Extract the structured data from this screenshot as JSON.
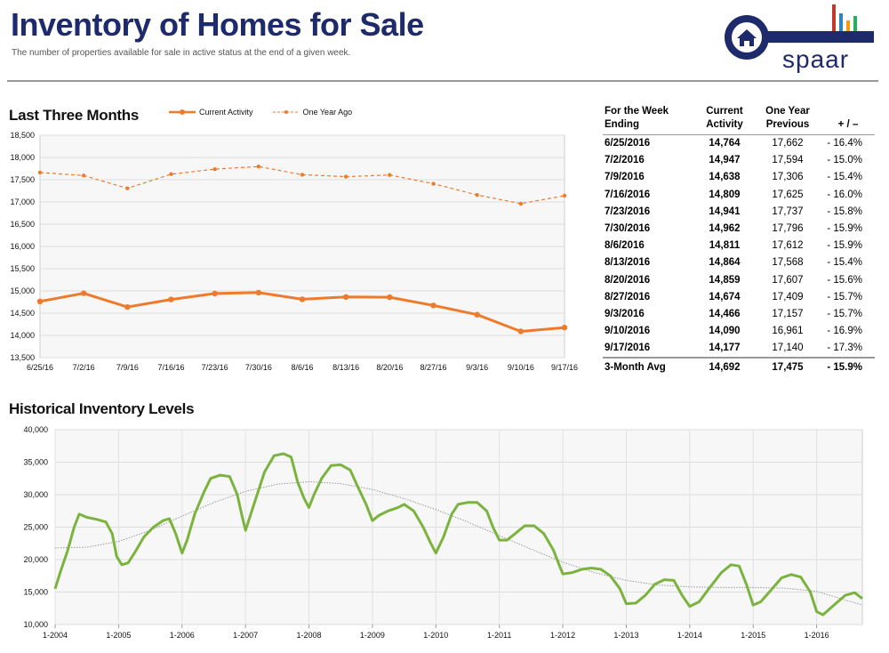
{
  "header": {
    "title": "Inventory of Homes for Sale",
    "subtitle": "The number of properties available for sale in active status at the end of a given week."
  },
  "logo": {
    "text": "spaar",
    "icon": "house-key-logo-icon",
    "bar_colors": [
      "#c0392b",
      "#2e86c1",
      "#f39c12",
      "#27ae60"
    ]
  },
  "colors": {
    "current": "#ee7b2c",
    "year_ago": "#ee7b2c",
    "historical": "#7bb33e",
    "trend": "#999999",
    "title": "#1d2a6b"
  },
  "chart_data": [
    {
      "type": "line",
      "title": "Last Three Months",
      "categories": [
        "6/25/16",
        "7/2/16",
        "7/9/16",
        "7/16/16",
        "7/23/16",
        "7/30/16",
        "8/6/16",
        "8/13/16",
        "8/20/16",
        "8/27/16",
        "9/3/16",
        "9/10/16",
        "9/17/16"
      ],
      "series": [
        {
          "name": "Current Activity",
          "style": "solid",
          "values": [
            14764,
            14947,
            14638,
            14809,
            14941,
            14962,
            14811,
            14864,
            14859,
            14674,
            14466,
            14090,
            14177
          ]
        },
        {
          "name": "One Year Ago",
          "style": "dashed",
          "values": [
            17662,
            17594,
            17306,
            17625,
            17737,
            17796,
            17612,
            17568,
            17607,
            17409,
            17157,
            16961,
            17140
          ]
        }
      ],
      "ylim": [
        13500,
        18500
      ],
      "yticks": [
        "13,500",
        "14,000",
        "14,500",
        "15,000",
        "15,500",
        "16,000",
        "16,500",
        "17,000",
        "17,500",
        "18,000",
        "18,500"
      ],
      "grid": true,
      "legend": "top"
    },
    {
      "type": "line",
      "title": "Historical Inventory Levels",
      "xlim": [
        2004.0,
        2016.72
      ],
      "ylim": [
        10000,
        40000
      ],
      "yticks": [
        "10,000",
        "15,000",
        "20,000",
        "25,000",
        "30,000",
        "35,000",
        "40,000"
      ],
      "xticks": [
        "1-2004",
        "1-2005",
        "1-2006",
        "1-2007",
        "1-2008",
        "1-2009",
        "1-2010",
        "1-2011",
        "1-2012",
        "1-2013",
        "1-2014",
        "1-2015",
        "1-2016"
      ],
      "grid": true,
      "series": [
        {
          "name": "",
          "style": "solid",
          "points": [
            [
              2004.0,
              15500
            ],
            [
              2004.08,
              18000
            ],
            [
              2004.2,
              21500
            ],
            [
              2004.3,
              25000
            ],
            [
              2004.38,
              27000
            ],
            [
              2004.5,
              26500
            ],
            [
              2004.65,
              26200
            ],
            [
              2004.8,
              25800
            ],
            [
              2004.9,
              24000
            ],
            [
              2004.97,
              20500
            ],
            [
              2005.05,
              19200
            ],
            [
              2005.15,
              19500
            ],
            [
              2005.25,
              21000
            ],
            [
              2005.4,
              23500
            ],
            [
              2005.55,
              25000
            ],
            [
              2005.7,
              26000
            ],
            [
              2005.8,
              26300
            ],
            [
              2005.9,
              24000
            ],
            [
              2006.0,
              21000
            ],
            [
              2006.08,
              23000
            ],
            [
              2006.2,
              27000
            ],
            [
              2006.35,
              30500
            ],
            [
              2006.45,
              32500
            ],
            [
              2006.6,
              33000
            ],
            [
              2006.75,
              32800
            ],
            [
              2006.87,
              30000
            ],
            [
              2006.95,
              26500
            ],
            [
              2007.0,
              24500
            ],
            [
              2007.1,
              27500
            ],
            [
              2007.2,
              30500
            ],
            [
              2007.3,
              33500
            ],
            [
              2007.45,
              36000
            ],
            [
              2007.6,
              36300
            ],
            [
              2007.72,
              35800
            ],
            [
              2007.82,
              32000
            ],
            [
              2007.92,
              29500
            ],
            [
              2008.0,
              28000
            ],
            [
              2008.08,
              30000
            ],
            [
              2008.2,
              32500
            ],
            [
              2008.35,
              34500
            ],
            [
              2008.5,
              34600
            ],
            [
              2008.65,
              33800
            ],
            [
              2008.78,
              31000
            ],
            [
              2008.9,
              28500
            ],
            [
              2009.0,
              26000
            ],
            [
              2009.1,
              26800
            ],
            [
              2009.25,
              27500
            ],
            [
              2009.4,
              28000
            ],
            [
              2009.5,
              28500
            ],
            [
              2009.65,
              27500
            ],
            [
              2009.8,
              25000
            ],
            [
              2009.92,
              22500
            ],
            [
              2010.0,
              21000
            ],
            [
              2010.12,
              23500
            ],
            [
              2010.25,
              27000
            ],
            [
              2010.35,
              28500
            ],
            [
              2010.5,
              28800
            ],
            [
              2010.65,
              28800
            ],
            [
              2010.8,
              27500
            ],
            [
              2010.9,
              25000
            ],
            [
              2011.0,
              23000
            ],
            [
              2011.12,
              23000
            ],
            [
              2011.25,
              24000
            ],
            [
              2011.4,
              25200
            ],
            [
              2011.55,
              25200
            ],
            [
              2011.7,
              24000
            ],
            [
              2011.85,
              21500
            ],
            [
              2011.95,
              19000
            ],
            [
              2012.0,
              17800
            ],
            [
              2012.15,
              18000
            ],
            [
              2012.3,
              18500
            ],
            [
              2012.45,
              18700
            ],
            [
              2012.6,
              18500
            ],
            [
              2012.75,
              17500
            ],
            [
              2012.9,
              15500
            ],
            [
              2013.0,
              13200
            ],
            [
              2013.15,
              13300
            ],
            [
              2013.3,
              14500
            ],
            [
              2013.45,
              16200
            ],
            [
              2013.6,
              16900
            ],
            [
              2013.75,
              16800
            ],
            [
              2013.88,
              14500
            ],
            [
              2014.0,
              12800
            ],
            [
              2014.15,
              13500
            ],
            [
              2014.3,
              15500
            ],
            [
              2014.5,
              18000
            ],
            [
              2014.65,
              19200
            ],
            [
              2014.78,
              19000
            ],
            [
              2014.9,
              16000
            ],
            [
              2015.0,
              13000
            ],
            [
              2015.12,
              13500
            ],
            [
              2015.3,
              15500
            ],
            [
              2015.45,
              17200
            ],
            [
              2015.6,
              17700
            ],
            [
              2015.75,
              17300
            ],
            [
              2015.9,
              15000
            ],
            [
              2016.0,
              12000
            ],
            [
              2016.1,
              11500
            ],
            [
              2016.25,
              12800
            ],
            [
              2016.45,
              14500
            ],
            [
              2016.6,
              14900
            ],
            [
              2016.72,
              14000
            ]
          ]
        },
        {
          "name": "",
          "style": "dotted-trend",
          "points": [
            [
              2004.0,
              21800
            ],
            [
              2004.5,
              21900
            ],
            [
              2005.0,
              22800
            ],
            [
              2005.5,
              24500
            ],
            [
              2006.0,
              26700
            ],
            [
              2006.5,
              28800
            ],
            [
              2007.0,
              30500
            ],
            [
              2007.5,
              31600
            ],
            [
              2008.0,
              32000
            ],
            [
              2008.5,
              31700
            ],
            [
              2009.0,
              30800
            ],
            [
              2009.5,
              29400
            ],
            [
              2010.0,
              27700
            ],
            [
              2010.5,
              25800
            ],
            [
              2011.0,
              23700
            ],
            [
              2011.5,
              21600
            ],
            [
              2012.0,
              19600
            ],
            [
              2012.5,
              18000
            ],
            [
              2013.0,
              16800
            ],
            [
              2013.5,
              16100
            ],
            [
              2014.0,
              15800
            ],
            [
              2014.5,
              15700
            ],
            [
              2015.0,
              15700
            ],
            [
              2015.5,
              15600
            ],
            [
              2016.0,
              15100
            ],
            [
              2016.72,
              13000
            ]
          ]
        }
      ]
    }
  ],
  "table": {
    "headers": [
      "For the Week Ending",
      "Current Activity",
      "One Year Previous",
      "+ / –"
    ],
    "rows": [
      [
        "6/25/2016",
        "14,764",
        "17,662",
        "- 16.4%"
      ],
      [
        "7/2/2016",
        "14,947",
        "17,594",
        "- 15.0%"
      ],
      [
        "7/9/2016",
        "14,638",
        "17,306",
        "- 15.4%"
      ],
      [
        "7/16/2016",
        "14,809",
        "17,625",
        "- 16.0%"
      ],
      [
        "7/23/2016",
        "14,941",
        "17,737",
        "- 15.8%"
      ],
      [
        "7/30/2016",
        "14,962",
        "17,796",
        "- 15.9%"
      ],
      [
        "8/6/2016",
        "14,811",
        "17,612",
        "- 15.9%"
      ],
      [
        "8/13/2016",
        "14,864",
        "17,568",
        "- 15.4%"
      ],
      [
        "8/20/2016",
        "14,859",
        "17,607",
        "- 15.6%"
      ],
      [
        "8/27/2016",
        "14,674",
        "17,409",
        "- 15.7%"
      ],
      [
        "9/3/2016",
        "14,466",
        "17,157",
        "- 15.7%"
      ],
      [
        "9/10/2016",
        "14,090",
        "16,961",
        "- 16.9%"
      ],
      [
        "9/17/2016",
        "14,177",
        "17,140",
        "- 17.3%"
      ]
    ],
    "avg": [
      "3-Month Avg",
      "14,692",
      "17,475",
      "- 15.9%"
    ]
  }
}
